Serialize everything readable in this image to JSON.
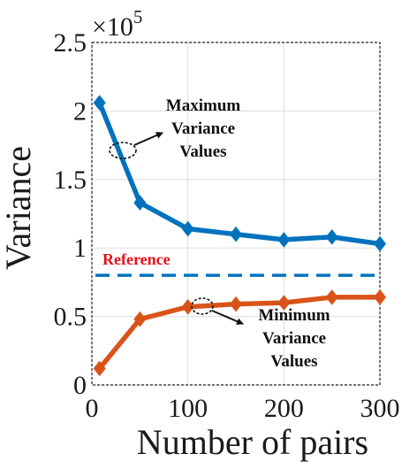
{
  "chart_data": {
    "type": "line",
    "xlabel": "Number of  pairs",
    "ylabel": "Variance",
    "y_multiplier": "×10",
    "y_exponent": "5",
    "xlim": [
      0,
      300
    ],
    "ylim": [
      0,
      2.5
    ],
    "x_ticks": [
      "0",
      "100",
      "200",
      "300"
    ],
    "x_tick_values": [
      0,
      100,
      200,
      300
    ],
    "y_ticks": [
      "0",
      "0.5",
      "1",
      "1.5",
      "2",
      "2.5"
    ],
    "y_tick_values": [
      0,
      0.5,
      1,
      1.5,
      2,
      2.5
    ],
    "grid": true,
    "series": [
      {
        "x": [
          8,
          50,
          100,
          150,
          200,
          250,
          300
        ],
        "values": [
          2.06,
          1.33,
          1.14,
          1.1,
          1.06,
          1.08,
          1.03
        ],
        "color": "#0072BD"
      },
      {
        "x": [
          8,
          50,
          100,
          150,
          200,
          250,
          300
        ],
        "values": [
          0.12,
          0.48,
          0.57,
          0.59,
          0.6,
          0.64,
          0.64
        ],
        "color": "#D95319"
      }
    ],
    "reference": {
      "value": 0.8,
      "label": "Reference",
      "color": "#0072BD",
      "label_color": "#E8101A"
    },
    "annotations": [
      {
        "lines": [
          "Maximum",
          "Variance",
          "Values"
        ]
      },
      {
        "lines": [
          "Minimum",
          "Variance",
          "Values"
        ]
      }
    ]
  }
}
